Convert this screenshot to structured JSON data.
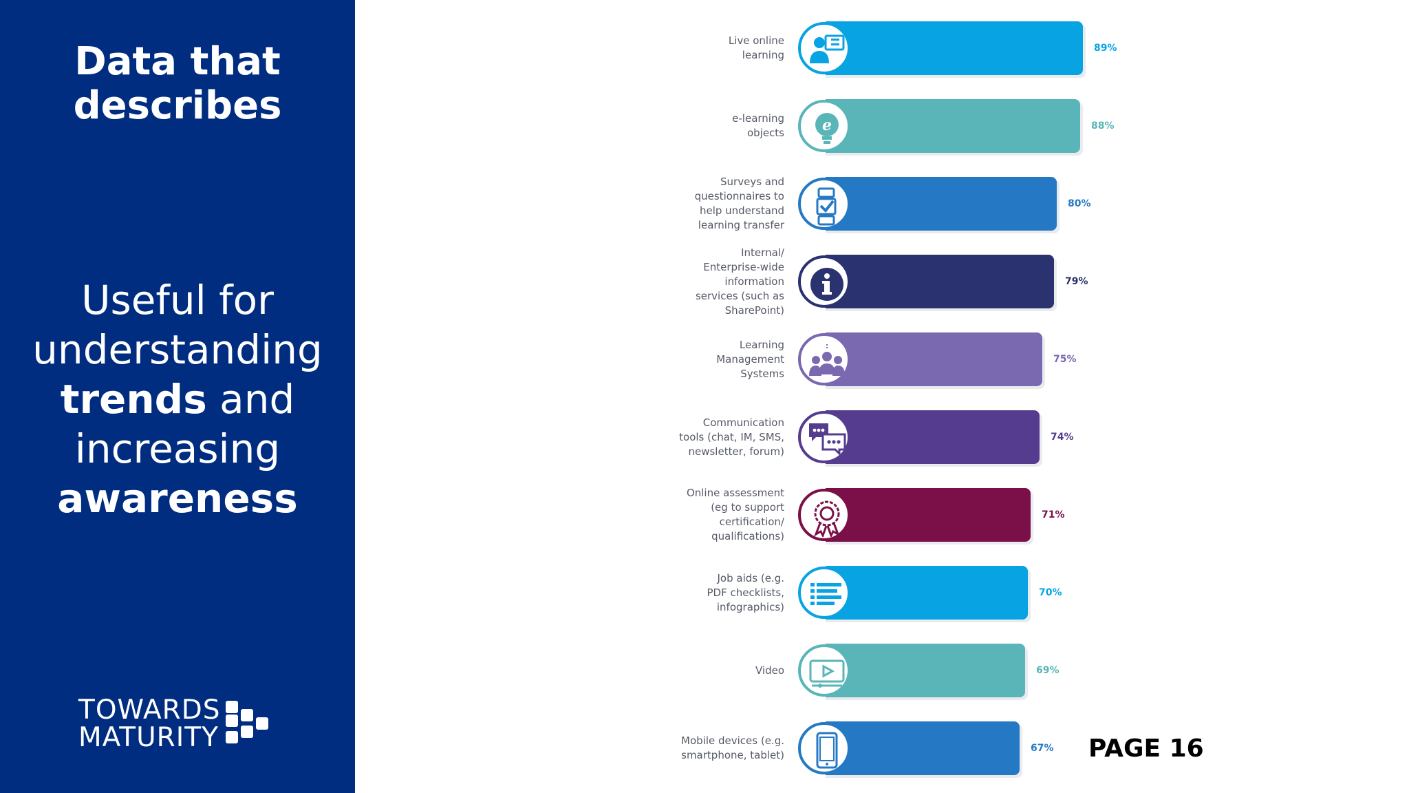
{
  "left_panel": {
    "heading": [
      "Data that",
      "describes"
    ],
    "body_line_1": "Useful for",
    "body_line_2": "understanding",
    "body_line_3_bold": "trends",
    "body_line_3_rest": " and",
    "body_line_4": "increasing",
    "body_line_5_bold": "awareness",
    "logo": [
      "TOWARDS",
      "MATURITY"
    ]
  },
  "page_label": "PAGE 16",
  "chart_data": {
    "type": "bar",
    "orientation": "horizontal",
    "xlim": [
      0,
      100
    ],
    "categories": [
      [
        "Live online",
        "learning"
      ],
      [
        "e-learning",
        "objects"
      ],
      [
        "Surveys and",
        "questionnaires to",
        "help understand",
        "learning transfer"
      ],
      [
        "Internal/",
        "Enterprise-wide",
        "information",
        "services (such as",
        "SharePoint)"
      ],
      [
        "Learning",
        "Management",
        "Systems"
      ],
      [
        "Communication",
        "tools (chat, IM, SMS,",
        "newsletter, forum)"
      ],
      [
        "Online assessment",
        "(eg to support",
        "certification/",
        "qualifications)"
      ],
      [
        "Job aids (e.g.",
        "PDF checklists,",
        "infographics)"
      ],
      [
        "Video"
      ],
      [
        "Mobile devices (e.g.",
        "smartphone, tablet)"
      ]
    ],
    "values": [
      89,
      88,
      80,
      79,
      75,
      74,
      71,
      70,
      69,
      67
    ],
    "value_labels": [
      "89%",
      "88%",
      "80%",
      "79%",
      "75%",
      "74%",
      "71%",
      "70%",
      "69%",
      "67%"
    ],
    "colors": [
      "#08a3e3",
      "#5ab5b8",
      "#2579c4",
      "#2a3270",
      "#7a68b0",
      "#553c8e",
      "#7b0f48",
      "#08a3e3",
      "#5ab5b8",
      "#2579c4"
    ],
    "icons": [
      "presenter-screen-icon",
      "lightbulb-icon",
      "checklist-icon",
      "info-icon",
      "group-icon",
      "chat-bubbles-icon",
      "rosette-award-icon",
      "document-list-icon",
      "video-player-icon",
      "mobile-phone-icon"
    ]
  }
}
